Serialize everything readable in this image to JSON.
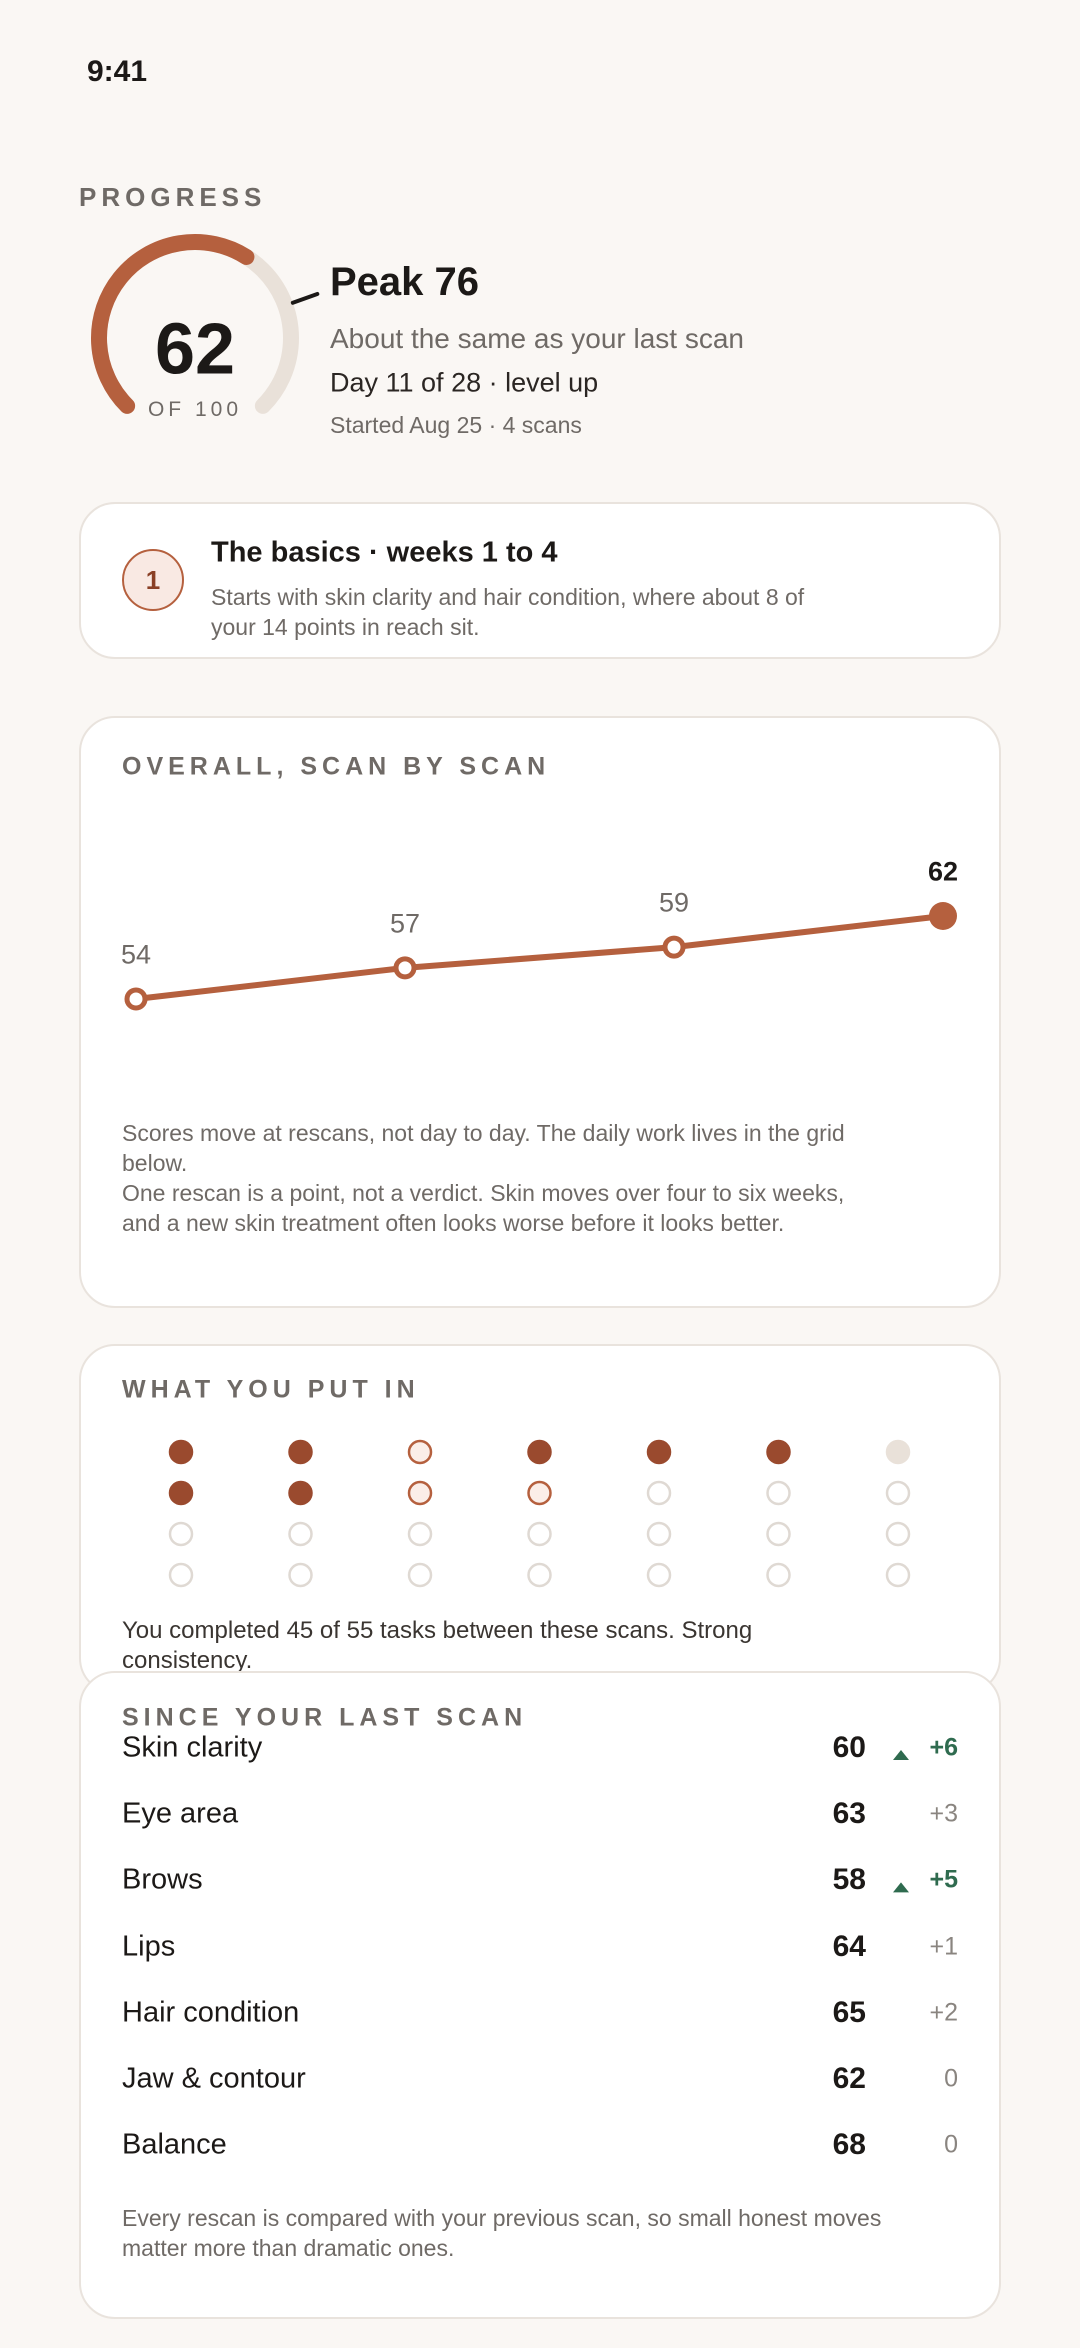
{
  "status_bar": {
    "time": "9:41"
  },
  "header": {
    "label": "PROGRESS",
    "gauge": {
      "value": 62,
      "max": 100,
      "peak": 76,
      "max_label": "OF 100"
    },
    "peak_label": "Peak 76",
    "comparison": "About the same as your last scan",
    "day": "Day 11 of 28 · level up",
    "started": "Started Aug 25 · 4 scans"
  },
  "phase_card": {
    "badge": "1",
    "title": "The basics · weeks 1 to 4",
    "body": "Starts with skin clarity and hair condition, where about 8 of your 14 points in reach sit."
  },
  "chart": {
    "type": "line",
    "title": "OVERALL, SCAN BY SCAN",
    "values": [
      54,
      57,
      59,
      62
    ],
    "color": "#b5603e",
    "notes": [
      "Scores move at rescans, not day to day. The daily work lives in the grid below.",
      "One rescan is a point, not a verdict. Skin moves over four to six weeks, and a new skin treatment often looks worse before it looks better."
    ]
  },
  "effort": {
    "title": "WHAT YOU PUT IN",
    "columns": [
      [
        "done",
        "done",
        "open",
        "open"
      ],
      [
        "done",
        "done",
        "open",
        "open"
      ],
      [
        "partial",
        "partial",
        "open",
        "open"
      ],
      [
        "done",
        "partial",
        "open",
        "open"
      ],
      [
        "done",
        "open",
        "open",
        "open"
      ],
      [
        "done",
        "open",
        "open",
        "open"
      ],
      [
        "rest",
        "open",
        "open",
        "open"
      ]
    ],
    "summary": "You completed 45 of 55 tasks between these scans. Strong consistency."
  },
  "changes": {
    "title": "SINCE YOUR LAST SCAN",
    "rows": [
      {
        "name": "Skin clarity",
        "score": 60,
        "delta": "+6",
        "up": true
      },
      {
        "name": "Eye area",
        "score": 63,
        "delta": "+3",
        "up": false
      },
      {
        "name": "Brows",
        "score": 58,
        "delta": "+5",
        "up": true
      },
      {
        "name": "Lips",
        "score": 64,
        "delta": "+1",
        "up": false
      },
      {
        "name": "Hair condition",
        "score": 65,
        "delta": "+2",
        "up": false
      },
      {
        "name": "Jaw & contour",
        "score": 62,
        "delta": "0",
        "up": false
      },
      {
        "name": "Balance",
        "score": 68,
        "delta": "0",
        "up": false
      }
    ],
    "footer": "Every rescan is compared with your previous scan, so small honest moves matter more than dramatic ones."
  }
}
